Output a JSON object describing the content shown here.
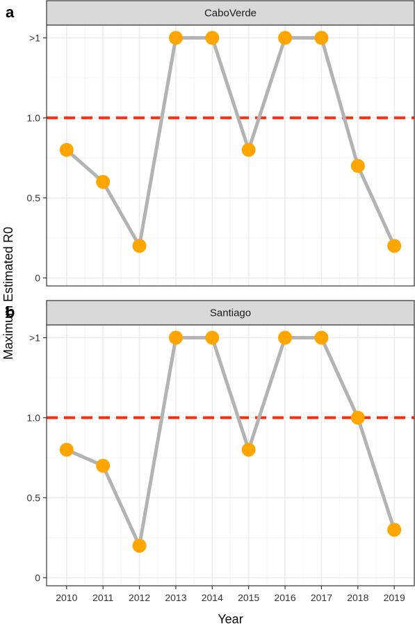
{
  "chart_data": {
    "type": "line",
    "x": [
      2010,
      2011,
      2012,
      2013,
      2014,
      2015,
      2016,
      2017,
      2018,
      2019
    ],
    "xlabel": "Year",
    "ylabel": "Maximum Estimated R0",
    "y_tick_values": [
      0,
      0.5,
      1.0,
      1.5
    ],
    "y_tick_labels": [
      "0",
      "0.5",
      "1.0",
      ">1"
    ],
    "ylim": [
      -0.05,
      1.58
    ],
    "threshold": 1.0,
    "grid": true,
    "panels": [
      {
        "letter": "a",
        "strip": "CaboVerde",
        "values": [
          0.8,
          0.6,
          0.2,
          1.5,
          1.5,
          0.8,
          1.5,
          1.5,
          0.7,
          0.2
        ]
      },
      {
        "letter": "b",
        "strip": "Santiago",
        "values": [
          0.8,
          0.7,
          0.2,
          1.5,
          1.5,
          0.8,
          1.5,
          1.5,
          1.0,
          0.3
        ]
      }
    ]
  },
  "colors": {
    "line": "#b3b3b3",
    "point": "#ffa500",
    "threshold": "#ff2b0a",
    "grid_major": "#ebebeb",
    "grid_minor": "#f5f5f5",
    "strip_fill": "#d9d9d9",
    "frame": "#333333"
  }
}
